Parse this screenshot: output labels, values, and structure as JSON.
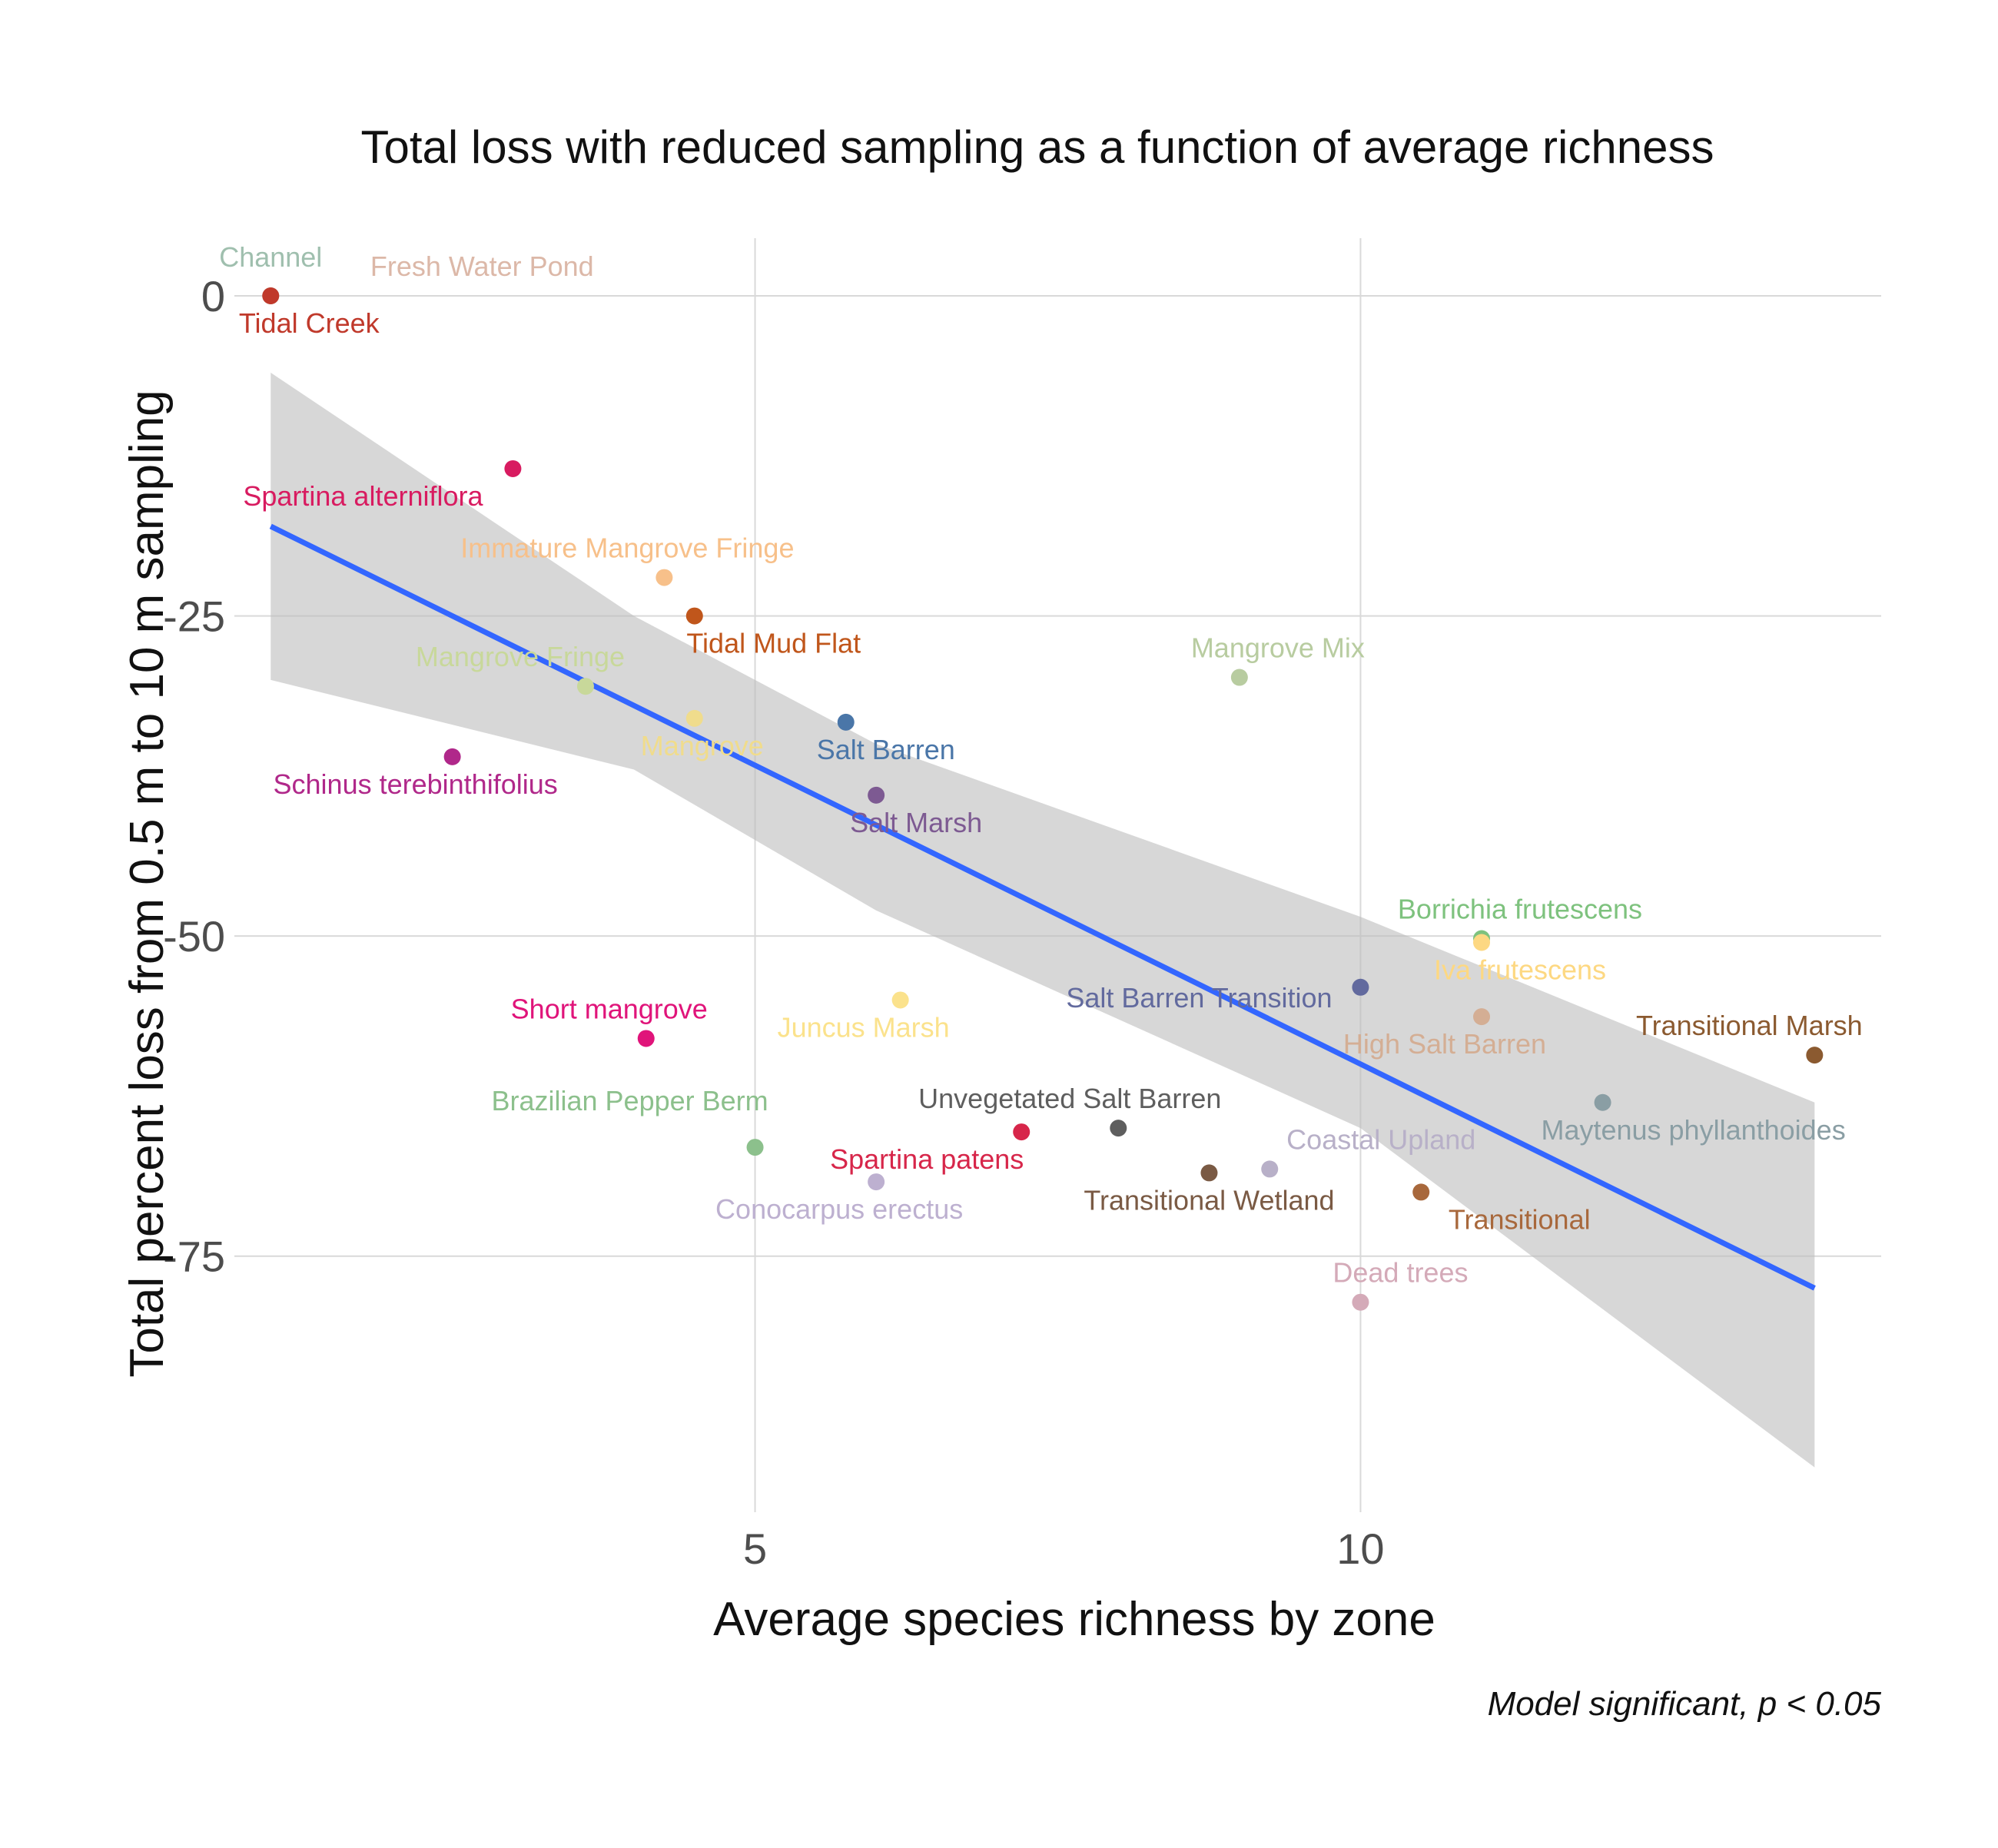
{
  "chart_data": {
    "type": "scatter",
    "title": "Total loss with reduced sampling as a function of average richness",
    "xlabel": "Average species richness by zone",
    "ylabel": "Total percent loss from 0.5 m to 10 m sampling",
    "caption": "Model significant, p  < 0.05",
    "xlim": [
      0.7,
      14.3
    ],
    "ylim": [
      -95,
      4.5
    ],
    "x_ticks": [
      5,
      10
    ],
    "y_ticks": [
      0,
      -25,
      -50,
      -75
    ],
    "grid": true,
    "legend": "none",
    "points": [
      {
        "label": "Channel",
        "x": 1.0,
        "y": 0.0,
        "color": "#9fbfae"
      },
      {
        "label": "Fresh Water Pond",
        "x": 1.0,
        "y": 0.0,
        "color": "#dcb8a8"
      },
      {
        "label": "Tidal Creek",
        "x": 1.0,
        "y": 0.0,
        "color": "#c0392b"
      },
      {
        "label": "Spartina alterniflora",
        "x": 3.0,
        "y": -13.5,
        "color": "#d81b60"
      },
      {
        "label": "Immature Mangrove Fringe",
        "x": 4.25,
        "y": -22.0,
        "color": "#f7c08a"
      },
      {
        "label": "Tidal Mud Flat",
        "x": 4.5,
        "y": -25.0,
        "color": "#c0561b"
      },
      {
        "label": "Mangrove Fringe",
        "x": 3.6,
        "y": -30.5,
        "color": "#c8d89a"
      },
      {
        "label": "Mangrove",
        "x": 4.5,
        "y": -33.0,
        "color": "#f0dc8c"
      },
      {
        "label": "Schinus terebinthifolius",
        "x": 2.5,
        "y": -36.0,
        "color": "#b0288a"
      },
      {
        "label": "Salt Barren",
        "x": 5.75,
        "y": -33.3,
        "color": "#4a76a8"
      },
      {
        "label": "Salt Marsh",
        "x": 6.0,
        "y": -39.0,
        "color": "#7d5a92"
      },
      {
        "label": "Mangrove Mix",
        "x": 9.0,
        "y": -29.8,
        "color": "#b8cca0"
      },
      {
        "label": "Borrichia frutescens",
        "x": 11.0,
        "y": -50.2,
        "color": "#7ec27e"
      },
      {
        "label": "Iva frutescens",
        "x": 11.0,
        "y": -50.5,
        "color": "#fdd882"
      },
      {
        "label": "Salt Barren Transition",
        "x": 10.0,
        "y": -54.0,
        "color": "#626a9e"
      },
      {
        "label": "High Salt Barren",
        "x": 11.0,
        "y": -56.3,
        "color": "#d4ae94"
      },
      {
        "label": "Transitional Marsh",
        "x": 13.75,
        "y": -59.3,
        "color": "#8b5a30"
      },
      {
        "label": "Maytenus phyllanthoides",
        "x": 12.0,
        "y": -63.0,
        "color": "#8a9ea4"
      },
      {
        "label": "Juncus Marsh",
        "x": 6.2,
        "y": -55.0,
        "color": "#fbe28c"
      },
      {
        "label": "Short mangrove",
        "x": 4.1,
        "y": -58.0,
        "color": "#e0147a"
      },
      {
        "label": "Brazilian Pepper Berm",
        "x": 5.0,
        "y": -66.5,
        "color": "#8cc08c"
      },
      {
        "label": "Unvegetated Salt Barren",
        "x": 8.0,
        "y": -65.0,
        "color": "#5e5e5e"
      },
      {
        "label": "Spartina patens",
        "x": 7.2,
        "y": -65.3,
        "color": "#d7264a"
      },
      {
        "label": "Conocarpus erectus",
        "x": 6.0,
        "y": -69.2,
        "color": "#bdb0d0"
      },
      {
        "label": "Transitional Wetland",
        "x": 8.75,
        "y": -68.5,
        "color": "#7a5a44"
      },
      {
        "label": "Coastal Upland",
        "x": 9.25,
        "y": -68.2,
        "color": "#b8b0c8"
      },
      {
        "label": "Transitional",
        "x": 10.5,
        "y": -70.0,
        "color": "#a8683c"
      },
      {
        "label": "Dead trees",
        "x": 10.0,
        "y": -78.6,
        "color": "#d4aab8"
      }
    ],
    "fit_line": {
      "type": "linear",
      "x": [
        1.0,
        13.75
      ],
      "y": [
        -18.0,
        -77.5
      ],
      "color": "#3366ff"
    },
    "confidence_band": {
      "x": [
        1.0,
        4.0,
        6.0,
        10.0,
        13.75
      ],
      "upper": [
        -6.0,
        -25.0,
        -35.0,
        -48.5,
        -63.0
      ],
      "lower": [
        -30.0,
        -37.0,
        -48.0,
        -65.0,
        -91.5
      ],
      "color": "#bdbdbd"
    }
  }
}
